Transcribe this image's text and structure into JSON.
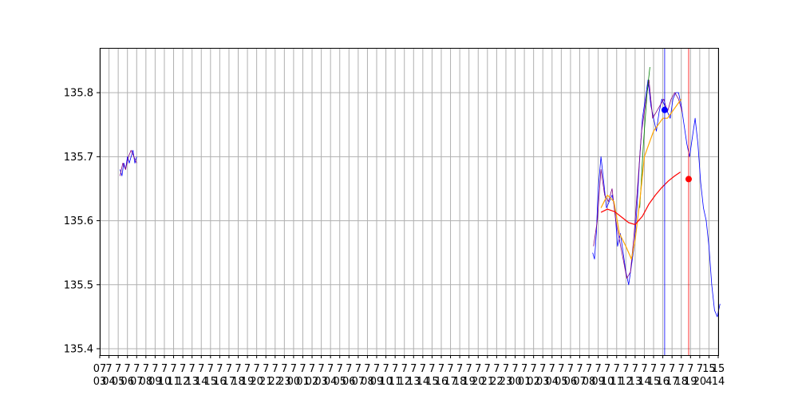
{
  "chart_data": {
    "type": "line",
    "title": "",
    "xlabel": "",
    "ylabel": "",
    "ylim": [
      135.39,
      135.87
    ],
    "yticks": [
      135.4,
      135.5,
      135.6,
      135.7,
      135.8
    ],
    "ytick_labels": [
      "135.4",
      "135.5",
      "135.6",
      "135.7",
      "135.8"
    ],
    "grid": true,
    "legend": "none",
    "x_index_range": [
      0,
      67
    ],
    "xtick_count": 68,
    "xtick_line1": [
      "07",
      "7",
      "7",
      "7",
      "7",
      "7",
      "7",
      "7",
      "7",
      "7",
      "7",
      "7",
      "7",
      "7",
      "7",
      "7",
      "7",
      "7",
      "7",
      "7",
      "7",
      "7",
      "7",
      "7",
      "7",
      "7",
      "7",
      "7",
      "7",
      "7",
      "7",
      "7",
      "7",
      "7",
      "7",
      "7",
      "7",
      "7",
      "7",
      "7",
      "7",
      "7",
      "7",
      "7",
      "7",
      "7",
      "7",
      "7",
      "7",
      "7",
      "7",
      "7",
      "7",
      "7",
      "7",
      "7",
      "7",
      "7",
      "7",
      "7",
      "7",
      "7",
      "7",
      "7",
      "7",
      "7",
      "15",
      "15"
    ],
    "xtick_line2": [
      "03",
      "04",
      "05",
      "06",
      "07",
      "08",
      "09",
      "10",
      "11",
      "12",
      "13",
      "14",
      "15",
      "16",
      "17",
      "18",
      "19",
      "20",
      "21",
      "22",
      "23",
      "00",
      "01",
      "02",
      "03",
      "04",
      "05",
      "06",
      "07",
      "08",
      "09",
      "10",
      "11",
      "12",
      "13",
      "14",
      "15",
      "16",
      "17",
      "18",
      "19",
      "20",
      "21",
      "22",
      "23",
      "00",
      "01",
      "02",
      "03",
      "04",
      "05",
      "06",
      "07",
      "08",
      "09",
      "10",
      "11",
      "12",
      "13",
      "14",
      "15",
      "16",
      "17",
      "18",
      "19",
      "20",
      "4",
      "14"
    ],
    "colors": {
      "price_a": "#0000ff",
      "price_b": "#800080",
      "fast_ma": "#ffa500",
      "slow_ma": "#ff0000",
      "upper_seg": "#008000",
      "marker_blue": "#0000ff",
      "marker_red": "#ff0000",
      "grid": "#b0b0b0"
    },
    "series": [
      {
        "color": "price_a",
        "segments": [
          {
            "x": [
              2.2,
              2.4,
              2.6,
              2.8,
              3.0,
              3.2,
              3.4,
              3.6,
              3.8,
              4.0
            ],
            "y": [
              135.68,
              135.67,
              135.69,
              135.68,
              135.7,
              135.69,
              135.7,
              135.71,
              135.69,
              135.7
            ]
          },
          {
            "x": [
              53.4,
              53.6,
              53.8,
              54.0,
              54.3,
              54.6,
              54.9,
              55.2,
              55.5,
              55.8,
              56.1,
              56.4,
              56.7,
              57.0,
              57.3,
              57.6,
              57.9,
              58.2,
              58.5,
              58.8,
              59.1,
              59.4,
              59.7,
              60.0,
              60.3,
              60.6,
              60.9,
              61.2,
              61.5,
              61.8,
              62.1,
              62.4,
              62.7,
              63.0,
              63.3,
              63.6,
              63.9,
              64.2,
              64.5,
              64.8,
              65.1,
              65.4,
              65.7,
              66.0,
              66.3,
              66.6,
              66.9,
              67.2
            ],
            "y": [
              135.55,
              135.54,
              135.58,
              135.65,
              135.7,
              135.66,
              135.62,
              135.63,
              135.64,
              135.62,
              135.56,
              135.58,
              135.55,
              135.52,
              135.5,
              135.53,
              135.56,
              135.62,
              135.7,
              135.76,
              135.79,
              135.82,
              135.78,
              135.76,
              135.74,
              135.77,
              135.79,
              135.78,
              135.77,
              135.76,
              135.79,
              135.8,
              135.8,
              135.78,
              135.75,
              135.72,
              135.7,
              135.73,
              135.76,
              135.72,
              135.66,
              135.62,
              135.6,
              135.56,
              135.5,
              135.46,
              135.45,
              135.47
            ]
          }
        ]
      },
      {
        "color": "price_b",
        "segments": [
          {
            "x": [
              2.2,
              2.5,
              2.8,
              3.1,
              3.4,
              3.7,
              4.0
            ],
            "y": [
              135.67,
              135.69,
              135.68,
              135.7,
              135.71,
              135.7,
              135.69
            ]
          },
          {
            "x": [
              53.5,
              53.9,
              54.3,
              54.7,
              55.1,
              55.5,
              55.9,
              56.3,
              56.7,
              57.1,
              57.5,
              57.9,
              58.3,
              58.7,
              59.1,
              59.5,
              59.9,
              60.3,
              60.7,
              61.1,
              61.5,
              61.9,
              62.3,
              62.7,
              63.1
            ],
            "y": [
              135.56,
              135.6,
              135.68,
              135.64,
              135.63,
              135.65,
              135.6,
              135.57,
              135.54,
              135.51,
              135.52,
              135.58,
              135.66,
              135.74,
              135.78,
              135.82,
              135.76,
              135.77,
              135.78,
              135.79,
              135.77,
              135.79,
              135.8,
              135.79,
              135.77
            ]
          }
        ]
      },
      {
        "color": "upper_seg",
        "segments": [
          {
            "x": [
              58.5,
              58.9,
              59.3,
              59.6
            ],
            "y": [
              135.62,
              135.72,
              135.8,
              135.84
            ]
          }
        ]
      },
      {
        "color": "fast_ma",
        "segments": [
          {
            "x": [
              54.3,
              55.0,
              55.7,
              56.3,
              57.0,
              57.6,
              58.0,
              58.5,
              59.0,
              59.5,
              60.0,
              60.5,
              61.0,
              61.5,
              62.0,
              62.5,
              63.0
            ],
            "y": [
              135.62,
              135.64,
              135.63,
              135.58,
              135.56,
              135.54,
              135.57,
              135.63,
              135.7,
              135.72,
              135.74,
              135.75,
              135.76,
              135.76,
              135.77,
              135.78,
              135.79
            ]
          }
        ]
      },
      {
        "color": "slow_ma",
        "segments": [
          {
            "x": [
              54.3,
              55.0,
              55.8,
              56.6,
              57.3,
              58.0,
              58.8,
              59.5,
              60.2,
              60.9,
              61.6,
              62.3,
              62.9
            ],
            "y": [
              135.613,
              135.618,
              135.614,
              135.605,
              135.597,
              135.594,
              135.607,
              135.626,
              135.64,
              135.652,
              135.662,
              135.67,
              135.676
            ]
          }
        ]
      }
    ],
    "vlines": [
      {
        "x": 61.2,
        "color": "marker_blue"
      },
      {
        "x": 63.8,
        "color": "marker_red"
      }
    ],
    "points": [
      {
        "x": 61.2,
        "y": 135.773,
        "color": "marker_blue"
      },
      {
        "x": 63.8,
        "y": 135.665,
        "color": "marker_red"
      }
    ]
  }
}
